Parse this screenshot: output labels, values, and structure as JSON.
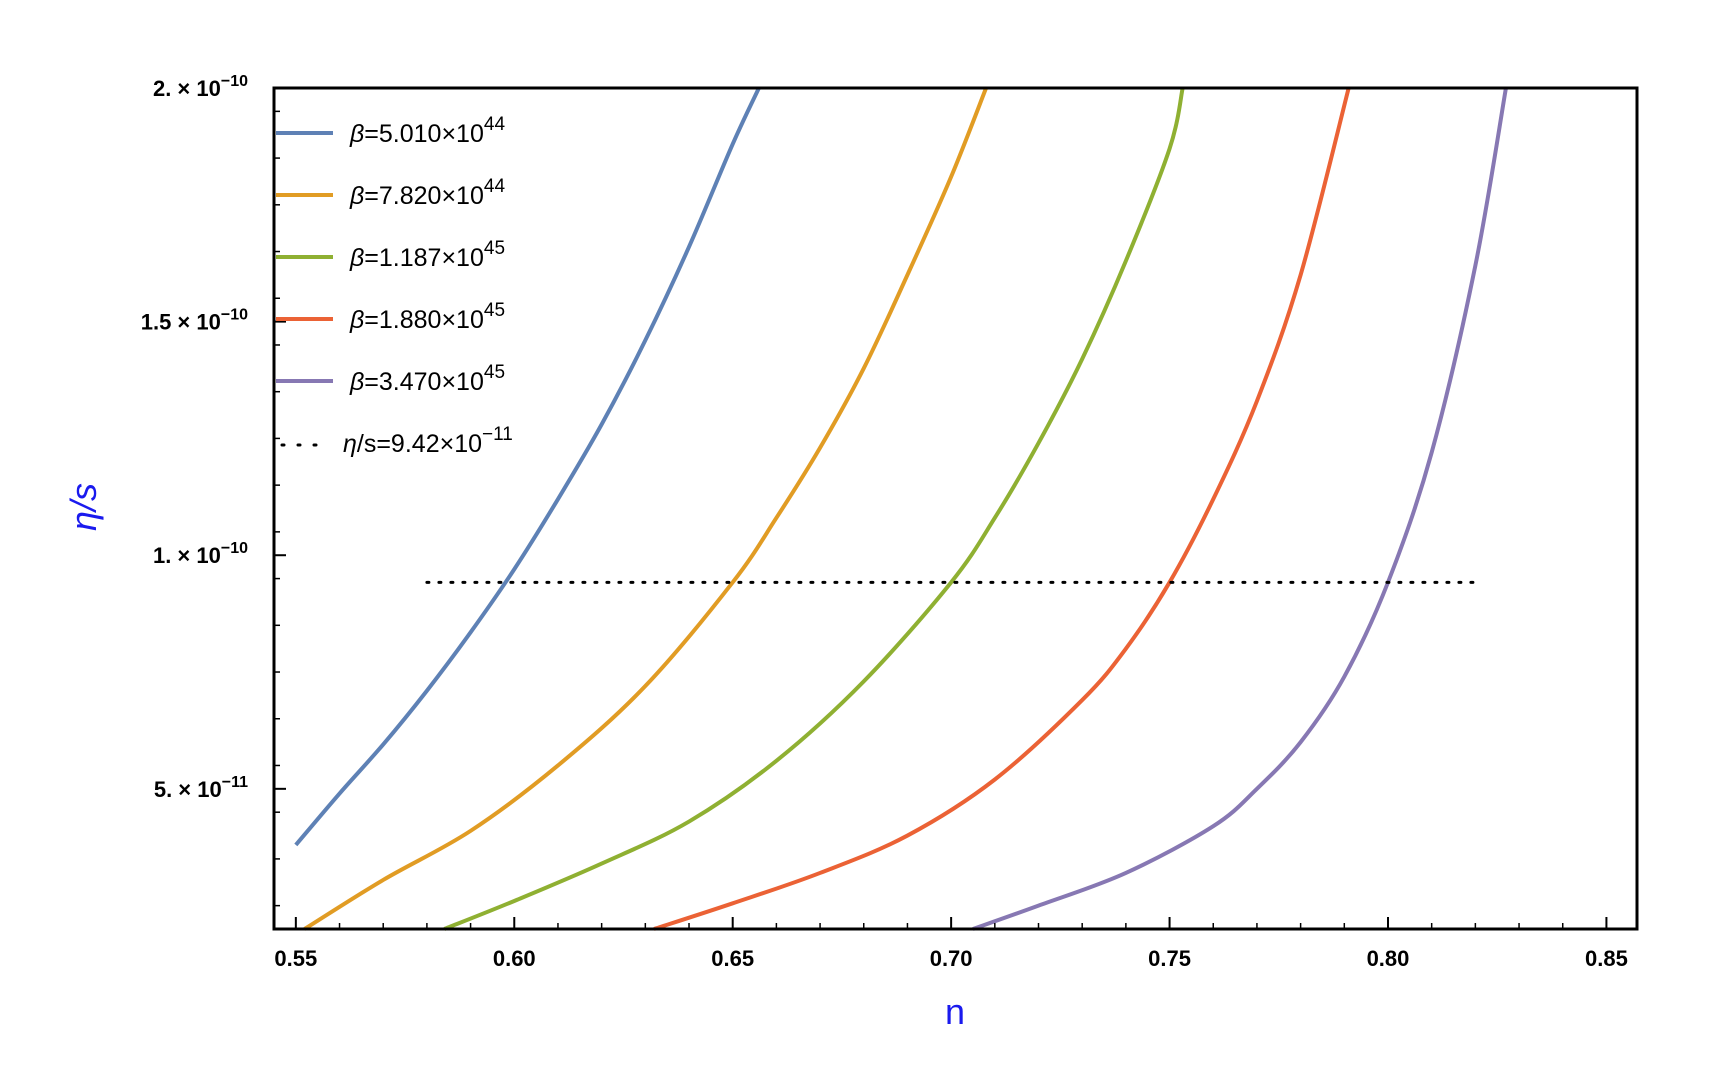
{
  "chart_data": {
    "type": "line",
    "xlabel": "n",
    "ylabel": "η/s",
    "xlim": [
      0.545,
      0.857
    ],
    "ylim": [
      2e-11,
      2e-10
    ],
    "x_ticks": [
      {
        "value": 0.55,
        "label": "0.55"
      },
      {
        "value": 0.6,
        "label": "0.60"
      },
      {
        "value": 0.65,
        "label": "0.65"
      },
      {
        "value": 0.7,
        "label": "0.70"
      },
      {
        "value": 0.75,
        "label": "0.75"
      },
      {
        "value": 0.8,
        "label": "0.80"
      },
      {
        "value": 0.85,
        "label": "0.85"
      }
    ],
    "y_ticks": [
      {
        "value": 5e-11,
        "mant": "5.",
        "exp": "−11"
      },
      {
        "value": 1e-10,
        "mant": "1.",
        "exp": "−10"
      },
      {
        "value": 1.5e-10,
        "mant": "1.5",
        "exp": "−10"
      },
      {
        "value": 2e-10,
        "mant": "2.",
        "exp": "−10"
      }
    ],
    "grid": false,
    "legend_position": "top-left",
    "series": [
      {
        "beta_mant": "5.010",
        "beta_exp": "44",
        "color": "#5e81b5",
        "x": [
          0.55,
          0.56,
          0.57,
          0.58,
          0.59,
          0.6,
          0.61,
          0.62,
          0.63,
          0.64,
          0.65,
          0.656
        ],
        "y": [
          3.8e-11,
          4.9e-11,
          5.95e-11,
          7.1e-11,
          8.35e-11,
          9.7e-11,
          1.12e-10,
          1.28e-10,
          1.46e-10,
          1.66e-10,
          1.88e-10,
          2e-10
        ]
      },
      {
        "beta_mant": "7.820",
        "beta_exp": "44",
        "color": "#e19c24",
        "x": [
          0.552,
          0.57,
          0.59,
          0.61,
          0.63,
          0.65,
          0.66,
          0.67,
          0.68,
          0.69,
          0.7,
          0.708
        ],
        "y": [
          2e-11,
          3.05e-11,
          4.1e-11,
          5.5e-11,
          7.2e-11,
          9.42e-11,
          1.08e-10,
          1.23e-10,
          1.4e-10,
          1.6e-10,
          1.81e-10,
          2e-10
        ]
      },
      {
        "beta_mant": "1.187",
        "beta_exp": "45",
        "color": "#8fb032",
        "x": [
          0.584,
          0.6,
          0.62,
          0.64,
          0.66,
          0.68,
          0.7,
          0.71,
          0.72,
          0.73,
          0.74,
          0.75,
          0.753
        ],
        "y": [
          2e-11,
          2.6e-11,
          3.4e-11,
          4.3e-11,
          5.6e-11,
          7.3e-11,
          9.42e-11,
          1.08e-10,
          1.24e-10,
          1.42e-10,
          1.63e-10,
          1.87e-10,
          2e-10
        ]
      },
      {
        "beta_mant": "1.880",
        "beta_exp": "45",
        "color": "#eb6235",
        "x": [
          0.632,
          0.65,
          0.67,
          0.69,
          0.71,
          0.73,
          0.74,
          0.75,
          0.76,
          0.77,
          0.78,
          0.791
        ],
        "y": [
          2e-11,
          2.55e-11,
          3.2e-11,
          4e-11,
          5.2e-11,
          6.9e-11,
          8e-11,
          9.42e-11,
          1.12e-10,
          1.33e-10,
          1.6e-10,
          2e-10
        ]
      },
      {
        "beta_mant": "3.470",
        "beta_exp": "45",
        "color": "#8778b3",
        "x": [
          0.705,
          0.72,
          0.74,
          0.76,
          0.77,
          0.78,
          0.79,
          0.8,
          0.81,
          0.82,
          0.827
        ],
        "y": [
          2e-11,
          2.5e-11,
          3.2e-11,
          4.2e-11,
          5e-11,
          6e-11,
          7.4e-11,
          9.42e-11,
          1.22e-10,
          1.62e-10,
          2e-10
        ]
      }
    ],
    "reference_line": {
      "value": 9.42e-11,
      "x_start": 0.58,
      "x_end": 0.82,
      "color": "#000000",
      "label_mant": "9.42",
      "label_exp": "−11"
    }
  }
}
